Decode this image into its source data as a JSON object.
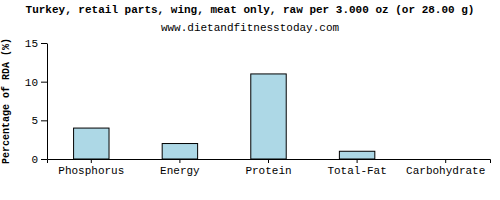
{
  "chart_data": {
    "type": "bar",
    "title": "Turkey, retail parts, wing, meat only, raw per 3.000 oz (or 28.00 g)",
    "subtitle": "www.dietandfitnesstoday.com",
    "y_label": "Percentage of RDA (%)",
    "categories": [
      "Phosphorus",
      "Energy",
      "Protein",
      "Total-Fat",
      "Carbohydrate"
    ],
    "values": [
      4,
      2,
      11,
      1,
      0
    ],
    "color": "#add8e6",
    "ylim": [
      0,
      15
    ],
    "yticks": [
      0,
      5,
      10,
      15
    ],
    "grid": false
  }
}
